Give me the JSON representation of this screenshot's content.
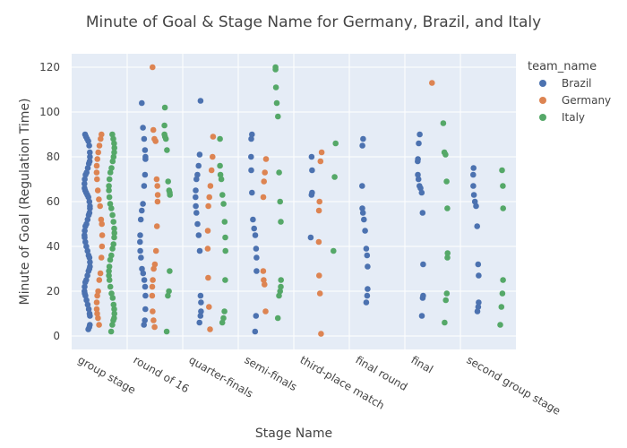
{
  "chart_data": {
    "type": "scatter",
    "title": "Minute of Goal & Stage Name for Germany, Brazil, and Italy",
    "xlabel": "Stage Name",
    "ylabel": "Minute of Goal (Regulation Time)",
    "categories": [
      "group stage",
      "round of 16",
      "quarter-finals",
      "semi-finals",
      "third-place match",
      "final round",
      "final",
      "second group stage"
    ],
    "ylim": [
      -6,
      126
    ],
    "yticks": [
      0,
      20,
      40,
      60,
      80,
      100,
      120
    ],
    "grid": true,
    "legend": {
      "title": "team_name",
      "placement": "top-right"
    },
    "series": [
      {
        "name": "Brazil",
        "color": "#4c72b0",
        "points": {
          "group stage": [
            3,
            4,
            5,
            9,
            10,
            12,
            14,
            16,
            18,
            19,
            20,
            22,
            24,
            25,
            27,
            29,
            30,
            31,
            33,
            35,
            36,
            38,
            40,
            42,
            44,
            45,
            47,
            49,
            50,
            52,
            54,
            55,
            57,
            58,
            60,
            62,
            63,
            64,
            65,
            66,
            68,
            70,
            72,
            73,
            75,
            77,
            78,
            80,
            82,
            85,
            87,
            88,
            89,
            90
          ],
          "round of 16": [
            5,
            7,
            12,
            18,
            22,
            25,
            28,
            30,
            35,
            38,
            42,
            45,
            52,
            56,
            59,
            67,
            72,
            79,
            80,
            83,
            88,
            93,
            104
          ],
          "quarter-finals": [
            6,
            9,
            11,
            15,
            18,
            38,
            45,
            50,
            55,
            58,
            62,
            65,
            70,
            72,
            76,
            81,
            105
          ],
          "semi-finals": [
            2,
            9,
            29,
            35,
            39,
            45,
            48,
            52,
            64,
            74,
            80,
            88,
            90
          ],
          "third-place match": [
            44,
            63,
            64,
            74,
            80
          ],
          "final round": [
            15,
            18,
            21,
            31,
            36,
            39,
            47,
            52,
            55,
            57,
            67,
            85,
            88
          ],
          "final": [
            9,
            17,
            18,
            32,
            55,
            64,
            66,
            67,
            70,
            72,
            78,
            79,
            86,
            90
          ],
          "second group stage": [
            11,
            13,
            15,
            27,
            32,
            49,
            58,
            60,
            63,
            67,
            72,
            75
          ]
        }
      },
      {
        "name": "Germany",
        "color": "#dd8452",
        "points": {
          "group stage": [
            5,
            8,
            10,
            12,
            15,
            18,
            20,
            25,
            28,
            35,
            40,
            45,
            50,
            52,
            58,
            61,
            65,
            70,
            73,
            76,
            79,
            82,
            85,
            88,
            90
          ],
          "round of 16": [
            4,
            7,
            11,
            18,
            22,
            25,
            30,
            32,
            38,
            49,
            60,
            63,
            67,
            70,
            87,
            88,
            92,
            120
          ],
          "quarter-finals": [
            3,
            13,
            26,
            39,
            47,
            58,
            62,
            67,
            74,
            80,
            89
          ],
          "semi-finals": [
            11,
            23,
            25,
            29,
            62,
            69,
            73,
            79
          ],
          "third-place match": [
            1,
            19,
            27,
            42,
            56,
            60,
            78,
            82
          ],
          "final round": [],
          "final": [
            113
          ],
          "second group stage": []
        }
      },
      {
        "name": "Italy",
        "color": "#55a868",
        "points": {
          "group stage": [
            2,
            5,
            7,
            8,
            10,
            12,
            14,
            17,
            19,
            22,
            25,
            27,
            29,
            31,
            34,
            36,
            39,
            41,
            44,
            46,
            48,
            51,
            54,
            57,
            59,
            62,
            65,
            67,
            70,
            73,
            75,
            78,
            80,
            82,
            84,
            86,
            88,
            90
          ],
          "round of 16": [
            2,
            18,
            20,
            29,
            63,
            64,
            65,
            69,
            83,
            88,
            89,
            90,
            94,
            102
          ],
          "quarter-finals": [
            6,
            8,
            11,
            25,
            38,
            44,
            51,
            59,
            63,
            70,
            72,
            76,
            88
          ],
          "semi-finals": [
            8,
            18,
            20,
            22,
            25,
            51,
            60,
            73,
            98,
            104,
            111,
            119,
            120
          ],
          "third-place match": [
            38,
            71,
            86
          ],
          "final round": [],
          "final": [
            6,
            16,
            19,
            35,
            37,
            57,
            69,
            81,
            82,
            95
          ],
          "second group stage": [
            5,
            13,
            19,
            25,
            57,
            67,
            74
          ]
        }
      }
    ]
  }
}
